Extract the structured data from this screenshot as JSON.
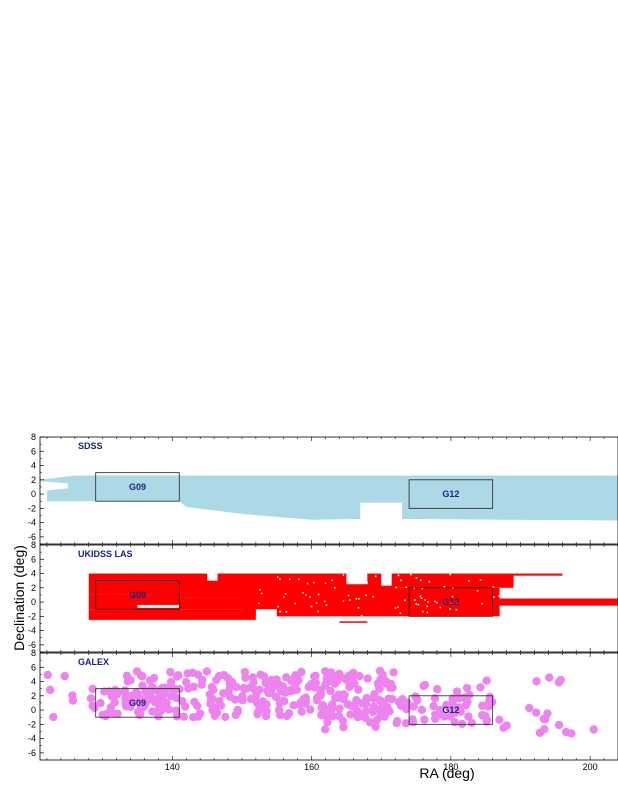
{
  "chart_data": {
    "type": "scatter",
    "xlabel": "RA (deg)",
    "ylabel": "Declination (deg)",
    "xlim": [
      121,
      204
    ],
    "ylim": [
      -7,
      8
    ],
    "xticks": [
      140,
      160,
      180,
      200
    ],
    "yticks": [
      -6,
      -4,
      -2,
      0,
      2,
      4,
      6,
      8
    ],
    "fields": [
      {
        "name": "G09",
        "ra": [
          129.0,
          141.0
        ],
        "dec": [
          -1.0,
          3.0
        ]
      },
      {
        "name": "G12",
        "ra": [
          174.0,
          186.0
        ],
        "dec": [
          -2.0,
          2.0
        ]
      }
    ],
    "panels": [
      {
        "title": "SDSS",
        "color": "#add8e6",
        "polygon": [
          [
            121,
            2
          ],
          [
            126,
            2.6
          ],
          [
            204,
            2.6
          ],
          [
            204,
            -3.7
          ],
          [
            174,
            -3.5
          ],
          [
            173,
            -3.5
          ],
          [
            173,
            -1.2
          ],
          [
            167,
            -1.2
          ],
          [
            167,
            -3.5
          ],
          [
            160,
            -3.6
          ],
          [
            150,
            -2.8
          ],
          [
            142,
            -1.8
          ],
          [
            141,
            -1.0
          ],
          [
            122,
            -1.0
          ],
          [
            122,
            0.5
          ],
          [
            125,
            0.8
          ],
          [
            125,
            1.5
          ],
          [
            121,
            1.8
          ]
        ],
        "holes": []
      },
      {
        "title": "UKIDSS LAS",
        "color": "#ff0000",
        "rects": [
          [
            128.0,
            137.5,
            1.0,
            4.0
          ],
          [
            128.0,
            141.0,
            -1.0,
            1.0
          ],
          [
            128.0,
            152.0,
            -2.5,
            -1.0
          ],
          [
            137.0,
            164.0,
            0.7,
            4.0
          ],
          [
            141.0,
            152.0,
            -1.0,
            0.7
          ],
          [
            150.0,
            172.0,
            1.5,
            3.5
          ],
          [
            150.0,
            187.0,
            -2.0,
            2.0
          ],
          [
            164.0,
            189.0,
            2.0,
            4.0
          ],
          [
            178.0,
            196.0,
            3.7,
            4.0
          ],
          [
            187.0,
            204.0,
            0.0,
            0.5
          ],
          [
            186.0,
            204.0,
            -0.5,
            0.0
          ]
        ],
        "gaps": [
          [
            145.0,
            146.5,
            3.0,
            4.0
          ],
          [
            135.0,
            141.0,
            -0.8,
            -0.4
          ],
          [
            152.0,
            155.0,
            -2.5,
            -1.0
          ],
          [
            165.0,
            168.0,
            2.5,
            4.0
          ],
          [
            170.0,
            171.5,
            2.3,
            4.0
          ]
        ],
        "strip": [
          164.0,
          168.0,
          -2.9,
          -2.7
        ]
      },
      {
        "title": "GALEX",
        "color": "#ee82ee",
        "circle_radius_deg": 0.6,
        "clusters": [
          {
            "ra": [
              128.0,
              141.0
            ],
            "dec": [
              -1.0,
              3.0
            ],
            "density": 1.2
          },
          {
            "ra": [
              133.0,
              152.0
            ],
            "dec": [
              1.0,
              5.5
            ],
            "density": 0.9
          },
          {
            "ra": [
              135.0,
              150.0
            ],
            "dec": [
              -1.0,
              1.0
            ],
            "density": 0.7
          },
          {
            "ra": [
              152.0,
              172.0
            ],
            "dec": [
              -1.0,
              5.5
            ],
            "density": 1.3
          },
          {
            "ra": [
              160.0,
              170.0
            ],
            "dec": [
              -3.0,
              -1.0
            ],
            "density": 0.4
          },
          {
            "ra": [
              172.0,
              186.0
            ],
            "dec": [
              -2.0,
              2.0
            ],
            "density": 1.0
          },
          {
            "ra": [
              176.0,
              186.0
            ],
            "dec": [
              2.0,
              4.5
            ],
            "density": 0.3
          },
          {
            "ra": [
              186.0,
              189.0
            ],
            "dec": [
              -3.5,
              -1.0
            ],
            "density": 0.4
          },
          {
            "ra": [
              190.0,
              196.0
            ],
            "dec": [
              -3.5,
              0.5
            ],
            "density": 0.35
          },
          {
            "ra": [
              190.0,
              197.0
            ],
            "dec": [
              3.0,
              5.0
            ],
            "density": 0.3
          },
          {
            "ra": [
              196.0,
              201.0
            ],
            "dec": [
              -4.0,
              -1.5
            ],
            "density": 0.25
          },
          {
            "ra": [
              122.0,
              126.0
            ],
            "dec": [
              -1.0,
              6.0
            ],
            "density": 0.2
          }
        ]
      }
    ]
  }
}
